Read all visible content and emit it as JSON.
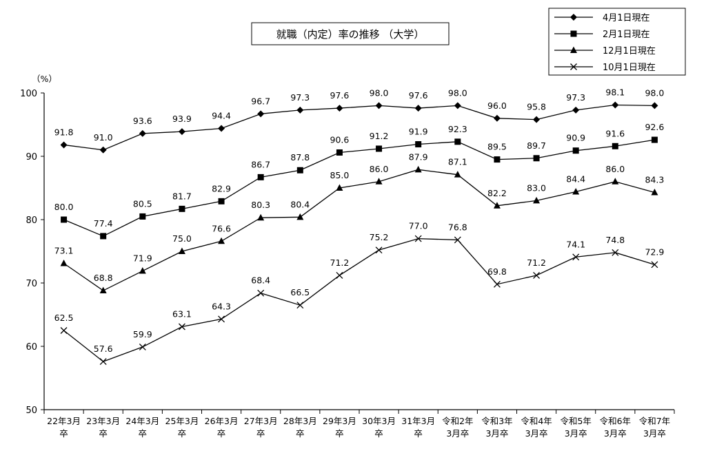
{
  "chart_data": {
    "type": "line",
    "title": "就職（内定）率の推移 （大学）",
    "unit": "（%）",
    "ylim": [
      50,
      100
    ],
    "yticks": [
      "50",
      "60",
      "70",
      "80",
      "90",
      "100"
    ],
    "categories": [
      [
        "22年3月",
        "卒"
      ],
      [
        "23年3月",
        "卒"
      ],
      [
        "24年3月",
        "卒"
      ],
      [
        "25年3月",
        "卒"
      ],
      [
        "26年3月",
        "卒"
      ],
      [
        "27年3月",
        "卒"
      ],
      [
        "28年3月",
        "卒"
      ],
      [
        "29年3月",
        "卒"
      ],
      [
        "30年3月",
        "卒"
      ],
      [
        "31年3月",
        "卒"
      ],
      [
        "令和2年",
        "3月卒"
      ],
      [
        "令和3年",
        "3月卒"
      ],
      [
        "令和4年",
        "3月卒"
      ],
      [
        "令和5年",
        "3月卒"
      ],
      [
        "令和6年",
        "3月卒"
      ],
      [
        "令和7年",
        "3月卒"
      ]
    ],
    "legend_position": "top-right",
    "grid": false,
    "series": [
      {
        "name": "4月1日現在",
        "marker": "diamond",
        "values": [
          91.8,
          91.0,
          93.6,
          93.9,
          94.4,
          96.7,
          97.3,
          97.6,
          98.0,
          97.6,
          98.0,
          96.0,
          95.8,
          97.3,
          98.1,
          98.0
        ],
        "labels": [
          "91.8",
          "91.0",
          "93.6",
          "93.9",
          "94.4",
          "96.7",
          "97.3",
          "97.6",
          "98.0",
          "97.6",
          "98.0",
          "96.0",
          "95.8",
          "97.3",
          "98.1",
          "98.0"
        ]
      },
      {
        "name": "2月1日現在",
        "marker": "square",
        "values": [
          80.0,
          77.4,
          80.5,
          81.7,
          82.9,
          86.7,
          87.8,
          90.6,
          91.2,
          91.9,
          92.3,
          89.5,
          89.7,
          90.9,
          91.6,
          92.6
        ],
        "labels": [
          "80.0",
          "77.4",
          "80.5",
          "81.7",
          "82.9",
          "86.7",
          "87.8",
          "90.6",
          "91.2",
          "91.9",
          "92.3",
          "89.5",
          "89.7",
          "90.9",
          "91.6",
          "92.6"
        ]
      },
      {
        "name": "12月1日現在",
        "marker": "triangle",
        "values": [
          73.1,
          68.8,
          71.9,
          75.0,
          76.6,
          80.3,
          80.4,
          85.0,
          86.0,
          87.9,
          87.1,
          82.2,
          83.0,
          84.4,
          86.0,
          84.3
        ],
        "labels": [
          "73.1",
          "68.8",
          "71.9",
          "75.0",
          "76.6",
          "80.3",
          "80.4",
          "85.0",
          "86.0",
          "87.9",
          "87.1",
          "82.2",
          "83.0",
          "84.4",
          "86.0",
          "84.3"
        ]
      },
      {
        "name": "10月1日現在",
        "marker": "x",
        "values": [
          62.5,
          57.6,
          59.9,
          63.1,
          64.3,
          68.4,
          66.5,
          71.2,
          75.2,
          77.0,
          76.8,
          69.8,
          71.2,
          74.1,
          74.8,
          72.9
        ],
        "labels": [
          "62.5",
          "57.6",
          "59.9",
          "63.1",
          "64.3",
          "68.4",
          "66.5",
          "71.2",
          "75.2",
          "77.0",
          "76.8",
          "69.8",
          "71.2",
          "74.1",
          "74.8",
          "72.9"
        ]
      }
    ]
  }
}
